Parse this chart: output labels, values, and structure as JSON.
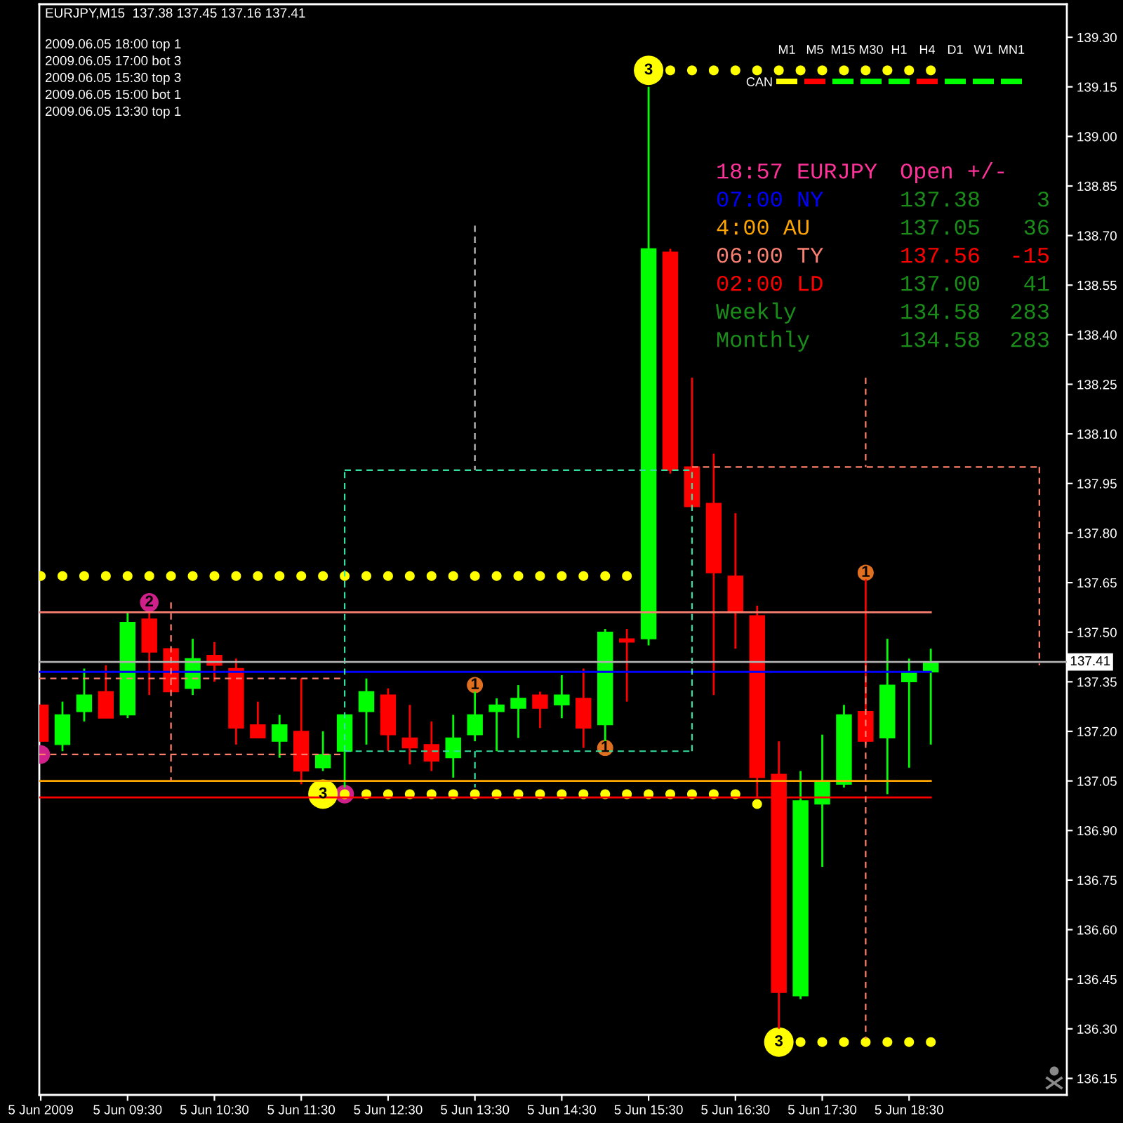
{
  "chart_data": [
    {
      "type": "candlestick",
      "title": "EURJPY,M15  137.38 137.45 137.16 137.41",
      "x": [
        "2009-06-05T08:30",
        "2009-06-05T08:45",
        "2009-06-05T09:00",
        "2009-06-05T09:15",
        "2009-06-05T09:30",
        "2009-06-05T09:45",
        "2009-06-05T10:00",
        "2009-06-05T10:15",
        "2009-06-05T10:30",
        "2009-06-05T10:45",
        "2009-06-05T11:00",
        "2009-06-05T11:15",
        "2009-06-05T11:30",
        "2009-06-05T11:45",
        "2009-06-05T12:00",
        "2009-06-05T12:15",
        "2009-06-05T12:30",
        "2009-06-05T12:45",
        "2009-06-05T13:00",
        "2009-06-05T13:15",
        "2009-06-05T13:30",
        "2009-06-05T13:45",
        "2009-06-05T14:00",
        "2009-06-05T14:15",
        "2009-06-05T14:30",
        "2009-06-05T14:45",
        "2009-06-05T15:00",
        "2009-06-05T15:15",
        "2009-06-05T15:30",
        "2009-06-05T15:45",
        "2009-06-05T16:00",
        "2009-06-05T16:15",
        "2009-06-05T16:30",
        "2009-06-05T16:45",
        "2009-06-05T17:00",
        "2009-06-05T17:15",
        "2009-06-05T17:30",
        "2009-06-05T17:45",
        "2009-06-05T18:00",
        "2009-06-05T18:15",
        "2009-06-05T18:30",
        "2009-06-05T18:45"
      ],
      "ohlc": [
        [
          137.28,
          137.28,
          137.17,
          137.17
        ],
        [
          137.16,
          137.29,
          137.14,
          137.25
        ],
        [
          137.26,
          137.39,
          137.23,
          137.31
        ],
        [
          137.32,
          137.4,
          137.24,
          137.24
        ],
        [
          137.25,
          137.56,
          137.24,
          137.53
        ],
        [
          137.54,
          137.56,
          137.31,
          137.44
        ],
        [
          137.45,
          137.45,
          137.32,
          137.32
        ],
        [
          137.33,
          137.48,
          137.31,
          137.42
        ],
        [
          137.43,
          137.47,
          137.35,
          137.4
        ],
        [
          137.39,
          137.42,
          137.16,
          137.21
        ],
        [
          137.22,
          137.29,
          137.18,
          137.18
        ],
        [
          137.17,
          137.25,
          137.12,
          137.22
        ],
        [
          137.2,
          137.36,
          137.04,
          137.08
        ],
        [
          137.09,
          137.2,
          137.08,
          137.13
        ],
        [
          137.14,
          137.25,
          137.03,
          137.25
        ],
        [
          137.26,
          137.36,
          137.16,
          137.32
        ],
        [
          137.31,
          137.33,
          137.14,
          137.19
        ],
        [
          137.18,
          137.28,
          137.1,
          137.15
        ],
        [
          137.16,
          137.23,
          137.08,
          137.11
        ],
        [
          137.12,
          137.25,
          137.06,
          137.18
        ],
        [
          137.19,
          137.32,
          137.17,
          137.25
        ],
        [
          137.26,
          137.3,
          137.14,
          137.28
        ],
        [
          137.27,
          137.34,
          137.18,
          137.3
        ],
        [
          137.31,
          137.32,
          137.21,
          137.27
        ],
        [
          137.28,
          137.37,
          137.24,
          137.31
        ],
        [
          137.3,
          137.39,
          137.15,
          137.21
        ],
        [
          137.22,
          137.51,
          137.17,
          137.5
        ],
        [
          137.48,
          137.51,
          137.29,
          137.47
        ],
        [
          137.48,
          139.15,
          137.46,
          138.66
        ],
        [
          138.65,
          138.66,
          137.98,
          137.99
        ],
        [
          138.0,
          138.27,
          137.88,
          137.88
        ],
        [
          137.89,
          138.04,
          137.31,
          137.68
        ],
        [
          137.67,
          137.86,
          137.45,
          137.56
        ],
        [
          137.55,
          137.58,
          137.0,
          137.06
        ],
        [
          137.07,
          137.17,
          136.3,
          136.41
        ],
        [
          136.4,
          137.08,
          136.39,
          136.99
        ],
        [
          136.98,
          137.19,
          136.79,
          137.05
        ],
        [
          137.04,
          137.28,
          137.03,
          137.25
        ],
        [
          137.26,
          137.66,
          137.16,
          137.17
        ],
        [
          137.18,
          137.48,
          137.01,
          137.34
        ],
        [
          137.35,
          137.42,
          137.09,
          137.38
        ],
        [
          137.38,
          137.45,
          137.16,
          137.41
        ]
      ],
      "colors": [
        "#ff0000",
        "#00ff00",
        "#00ff00",
        "#ff0000",
        "#00ff00",
        "#ff0000",
        "#ff0000",
        "#00ff00",
        "#ff0000",
        "#ff0000",
        "#ff0000",
        "#00ff00",
        "#ff0000",
        "#00ff00",
        "#00ff00",
        "#00ff00",
        "#ff0000",
        "#ff0000",
        "#ff0000",
        "#00ff00",
        "#00ff00",
        "#00ff00",
        "#00ff00",
        "#ff0000",
        "#00ff00",
        "#ff0000",
        "#00ff00",
        "#ff0000",
        "#00ff00",
        "#ff0000",
        "#ff0000",
        "#ff0000",
        "#ff0000",
        "#ff0000",
        "#ff0000",
        "#00ff00",
        "#00ff00",
        "#00ff00",
        "#ff0000",
        "#00ff00",
        "#00ff00",
        "#00ff00"
      ],
      "xlim": [
        "2009-06-05T08:29",
        "2009-06-05T20:19"
      ],
      "xticks": [
        {
          "value": "2009-06-05T08:30",
          "label": "5 Jun 2009"
        },
        {
          "value": "2009-06-05T09:30",
          "label": "5 Jun 09:30"
        },
        {
          "value": "2009-06-05T10:30",
          "label": "5 Jun 10:30"
        },
        {
          "value": "2009-06-05T11:30",
          "label": "5 Jun 11:30"
        },
        {
          "value": "2009-06-05T12:30",
          "label": "5 Jun 12:30"
        },
        {
          "value": "2009-06-05T13:30",
          "label": "5 Jun 13:30"
        },
        {
          "value": "2009-06-05T14:30",
          "label": "5 Jun 14:30"
        },
        {
          "value": "2009-06-05T15:30",
          "label": "5 Jun 15:30"
        },
        {
          "value": "2009-06-05T16:30",
          "label": "5 Jun 16:30"
        },
        {
          "value": "2009-06-05T17:30",
          "label": "5 Jun 17:30"
        },
        {
          "value": "2009-06-05T18:30",
          "label": "5 Jun 18:30"
        }
      ],
      "ylim": [
        136.1,
        139.4
      ],
      "yticks": [
        136.15,
        {
          "value": 136.3,
          "label": "136.30"
        },
        136.45,
        {
          "value": 136.6,
          "label": "136.60"
        },
        136.75,
        {
          "value": 136.9,
          "label": "136.90"
        },
        137.05,
        {
          "value": 137.2,
          "label": "137.20"
        },
        137.35,
        {
          "value": 137.5,
          "label": "137.50"
        },
        137.65,
        {
          "value": 137.8,
          "label": "137.80"
        },
        137.95,
        {
          "value": 138.1,
          "label": "138.10"
        },
        138.25,
        {
          "value": 138.4,
          "label": "138.40"
        },
        138.55,
        {
          "value": 138.7,
          "label": "138.70"
        },
        138.85,
        {
          "value": 139.0,
          "label": "139.00"
        },
        139.15,
        {
          "value": 139.3,
          "label": "139.30"
        }
      ],
      "ref_lines": [
        {
          "axis": "y",
          "value": 137.41,
          "color": "#b0b0b0",
          "label": "137.41"
        }
      ],
      "series": [
        {
          "type": "line",
          "color": "#fa8072",
          "line_style": "solid",
          "x": [
            "2009-06-05T08:29",
            "2009-06-05T18:45"
          ],
          "values": [
            137.56,
            137.56
          ]
        },
        {
          "type": "line",
          "color": "#0000ff",
          "line_style": "solid",
          "x": [
            "2009-06-05T08:29",
            "2009-06-05T18:45"
          ],
          "values": [
            137.38,
            137.38
          ]
        },
        {
          "type": "line",
          "color": "#ffa500",
          "line_style": "solid",
          "x": [
            "2009-06-05T08:29",
            "2009-06-05T18:45"
          ],
          "values": [
            137.05,
            137.05
          ]
        },
        {
          "type": "line",
          "color": "#ff0000",
          "line_style": "solid",
          "x": [
            "2009-06-05T08:29",
            "2009-06-05T18:45"
          ],
          "values": [
            137.0,
            137.0
          ]
        },
        {
          "type": "line",
          "color": "#33e0a0",
          "line_style": "dashed",
          "x": [
            "2009-06-05T12:00",
            "2009-06-05T16:00"
          ],
          "values": [
            137.99,
            137.99
          ]
        },
        {
          "type": "line",
          "color": "#33e0a0",
          "line_style": "dashed",
          "x": [
            "2009-06-05T12:00",
            "2009-06-05T16:00"
          ],
          "values": [
            137.14,
            137.14
          ]
        },
        {
          "type": "line",
          "color": "#33e0a0",
          "line_style": "dashed",
          "x": [
            "2009-06-05T12:00",
            "2009-06-05T12:00"
          ],
          "values": [
            137.14,
            137.99
          ]
        },
        {
          "type": "line",
          "color": "#33e0a0",
          "line_style": "dashed",
          "x": [
            "2009-06-05T16:00",
            "2009-06-05T16:00"
          ],
          "values": [
            137.14,
            137.99
          ]
        },
        {
          "type": "line",
          "color": "#33e0a0",
          "line_style": "dashed",
          "x": [
            "2009-06-05T13:30",
            "2009-06-05T13:30"
          ],
          "values": [
            137.14,
            137.03
          ]
        },
        {
          "type": "line",
          "color": "#ff7f6a",
          "line_style": "dashed",
          "x": [
            "2009-06-05T08:29",
            "2009-06-05T12:00"
          ],
          "values": [
            137.36,
            137.36
          ]
        },
        {
          "type": "line",
          "color": "#ff7f6a",
          "line_style": "dashed",
          "x": [
            "2009-06-05T08:29",
            "2009-06-05T12:00"
          ],
          "values": [
            137.13,
            137.13
          ]
        },
        {
          "type": "line",
          "color": "#ff7f6a",
          "line_style": "dashed",
          "x": [
            "2009-06-05T10:00",
            "2009-06-05T10:00"
          ],
          "values": [
            137.59,
            137.05
          ]
        },
        {
          "type": "line",
          "color": "#ff7f6a",
          "line_style": "dashed",
          "x": [
            "2009-06-05T16:00",
            "2009-06-05T20:00"
          ],
          "values": [
            138.0,
            138.0
          ]
        },
        {
          "type": "line",
          "color": "#ff7f6a",
          "line_style": "dashed",
          "x": [
            "2009-06-05T20:00",
            "2009-06-05T20:00"
          ],
          "values": [
            138.0,
            137.4
          ]
        },
        {
          "type": "line",
          "color": "#ff7f6a",
          "line_style": "dashed",
          "x": [
            "2009-06-05T18:00",
            "2009-06-05T18:00"
          ],
          "values": [
            138.27,
            138.0
          ]
        },
        {
          "type": "line",
          "color": "#ff7f6a",
          "line_style": "dashed",
          "x": [
            "2009-06-05T18:00",
            "2009-06-05T18:00"
          ],
          "values": [
            137.4,
            136.27
          ]
        },
        {
          "type": "line",
          "color": "#c0c0c0",
          "line_style": "dashed",
          "x": [
            "2009-06-05T13:30",
            "2009-06-05T13:30"
          ],
          "values": [
            138.73,
            137.99
          ]
        },
        {
          "type": "bubble",
          "color": "#d0208a",
          "marker": "circle",
          "x": [
            "2009-06-05T08:30",
            "2009-06-05T09:45",
            "2009-06-05T12:00"
          ],
          "values": [
            137.13,
            137.59,
            137.01
          ],
          "sizes": [
            0.4,
            0.4,
            0.4
          ]
        },
        {
          "type": "bubble",
          "color": "#e07020",
          "marker": "circle",
          "x": [
            "2009-06-05T13:30",
            "2009-06-05T15:00",
            "2009-06-05T18:00"
          ],
          "values": [
            137.34,
            137.15,
            137.68
          ],
          "sizes": [
            0.3,
            0.3,
            0.3
          ]
        },
        {
          "type": "bubble",
          "color": "#ffff00",
          "marker": "circle",
          "x": [
            "2009-06-05T11:45",
            "2009-06-05T15:30",
            "2009-06-05T17:00"
          ],
          "values": [
            137.01,
            139.2,
            136.26
          ],
          "sizes": [
            1,
            1,
            1
          ]
        },
        {
          "type": "scatter",
          "color": "#ffff00",
          "marker": "circle",
          "x": [
            "2009-06-05T08:30",
            "2009-06-05T08:45",
            "2009-06-05T09:00",
            "2009-06-05T09:15",
            "2009-06-05T09:30",
            "2009-06-05T09:45",
            "2009-06-05T10:00",
            "2009-06-05T10:15",
            "2009-06-05T10:30",
            "2009-06-05T10:45",
            "2009-06-05T11:00",
            "2009-06-05T11:15",
            "2009-06-05T11:30",
            "2009-06-05T11:45",
            "2009-06-05T12:00",
            "2009-06-05T12:15",
            "2009-06-05T12:30",
            "2009-06-05T12:45",
            "2009-06-05T13:00",
            "2009-06-05T13:15",
            "2009-06-05T13:30",
            "2009-06-05T13:45",
            "2009-06-05T14:00",
            "2009-06-05T14:15",
            "2009-06-05T14:30",
            "2009-06-05T14:45",
            "2009-06-05T15:00",
            "2009-06-05T15:15",
            "2009-06-05T12:00",
            "2009-06-05T12:15",
            "2009-06-05T12:30",
            "2009-06-05T12:45",
            "2009-06-05T13:00",
            "2009-06-05T13:15",
            "2009-06-05T13:30",
            "2009-06-05T13:45",
            "2009-06-05T14:00",
            "2009-06-05T14:15",
            "2009-06-05T14:30",
            "2009-06-05T14:45",
            "2009-06-05T15:00",
            "2009-06-05T15:15",
            "2009-06-05T15:30",
            "2009-06-05T15:45",
            "2009-06-05T16:00",
            "2009-06-05T16:15",
            "2009-06-05T16:30",
            "2009-06-05T16:45",
            "2009-06-05T17:15",
            "2009-06-05T17:30",
            "2009-06-05T17:45",
            "2009-06-05T18:00",
            "2009-06-05T18:15",
            "2009-06-05T18:30",
            "2009-06-05T18:45",
            "2009-06-05T15:45",
            "2009-06-05T16:00",
            "2009-06-05T16:15",
            "2009-06-05T16:30",
            "2009-06-05T16:45",
            "2009-06-05T17:00",
            "2009-06-05T17:15",
            "2009-06-05T17:30",
            "2009-06-05T17:45",
            "2009-06-05T18:00",
            "2009-06-05T18:15",
            "2009-06-05T18:30",
            "2009-06-05T18:45"
          ],
          "values": [
            137.67,
            137.67,
            137.67,
            137.67,
            137.67,
            137.67,
            137.67,
            137.67,
            137.67,
            137.67,
            137.67,
            137.67,
            137.67,
            137.67,
            137.67,
            137.67,
            137.67,
            137.67,
            137.67,
            137.67,
            137.67,
            137.67,
            137.67,
            137.67,
            137.67,
            137.67,
            137.67,
            137.67,
            137.01,
            137.01,
            137.01,
            137.01,
            137.01,
            137.01,
            137.01,
            137.01,
            137.01,
            137.01,
            137.01,
            137.01,
            137.01,
            137.01,
            137.01,
            137.01,
            137.01,
            137.01,
            137.01,
            136.98,
            136.26,
            136.26,
            136.26,
            136.26,
            136.26,
            136.26,
            136.26,
            139.2,
            139.2,
            139.2,
            139.2,
            139.2,
            139.2,
            139.2,
            139.2,
            139.2,
            139.2,
            139.2,
            139.2,
            139.2
          ]
        }
      ],
      "annotations": [
        "2009.06.05 18:00 top 1",
        "2009.06.05 17:00 bot 3",
        "2009.06.05 15:30 top 3",
        "2009.06.05 15:00 bot 1",
        "2009.06.05 13:30 top 1",
        {
          "text": "2",
          "x": "2009-06-05T09:45",
          "y": 137.59
        },
        {
          "text": "1",
          "x": "2009-06-05T13:30",
          "y": 137.34
        },
        {
          "text": "1",
          "x": "2009-06-05T15:00",
          "y": 137.15
        },
        {
          "text": "1",
          "x": "2009-06-05T18:00",
          "y": 137.68
        },
        {
          "text": "3",
          "x": "2009-06-05T11:45",
          "y": 137.01
        },
        {
          "text": "3",
          "x": "2009-06-05T15:30",
          "y": 139.2
        },
        {
          "text": "3",
          "x": "2009-06-05T17:00",
          "y": 136.26
        }
      ]
    },
    {
      "type": "other",
      "categories": [
        "M1",
        "M5",
        "M15",
        "M30",
        "H1",
        "H4",
        "D1",
        "W1",
        "MN1"
      ],
      "colors": [
        "#ffff00",
        "#ff0000",
        "#00ff00",
        "#00ff00",
        "#00ff00",
        "#ff0000",
        "#00ff00",
        "#00ff00",
        "#00ff00"
      ],
      "annotations": [
        "CAN"
      ]
    },
    {
      "type": "other",
      "annotations": [
        "18:57 EURJPY",
        "Open +/-",
        "07:00 NY",
        "137.38",
        "3",
        "4:00 AU",
        "137.05",
        "36",
        "06:00 TY",
        "137.56",
        "-15",
        "02:00 LD",
        "137.00",
        "41",
        "Weekly",
        "134.58",
        "283",
        "Monthly",
        "134.58",
        "283"
      ],
      "colors": [
        "#ff3399",
        "#ff3399",
        "#0000ff",
        "#1a8c1a",
        "#1a8c1a",
        "#ffa500",
        "#1a8c1a",
        "#1a8c1a",
        "#fa8072",
        "#ff0000",
        "#ff0000",
        "#ff0000",
        "#1a8c1a",
        "#1a8c1a",
        "#1a8c1a",
        "#1a8c1a",
        "#1a8c1a",
        "#1a8c1a",
        "#1a8c1a",
        "#1a8c1a"
      ]
    }
  ]
}
